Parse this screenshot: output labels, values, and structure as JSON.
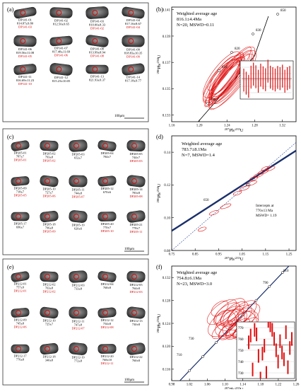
{
  "figure": {
    "rows": [
      {
        "images_label": "(a)",
        "plot_label": "(b)",
        "scale_bar": "100μm",
        "grains": [
          {
            "id": "DP141-01",
            "age": "814.87±9.80",
            "red": "DP141-03"
          },
          {
            "id": "DP141-02",
            "age": "812.50±9.65",
            "red": ""
          },
          {
            "id": "DP141-03",
            "age": "810.00±8.33",
            "red": "DP141-02"
          },
          {
            "id": "DP141-04",
            "age": "817.16±8.67",
            "red": "DP141-04"
          },
          {
            "id": "DP141-06",
            "age": "819.56±11.08",
            "red": "DP141-05"
          },
          {
            "id": "DP141-07",
            "age": "817.48±11.69",
            "red": "DP141-06"
          },
          {
            "id": "DP141-08",
            "age": "813.99±8.94",
            "red": "DP141-08"
          },
          {
            "id": "DP141-09",
            "age": "818.83±10.35",
            "red": "DP141-09"
          },
          {
            "id": "DP141-11",
            "age": "816.69±11.23",
            "red": "DP141-10"
          },
          {
            "id": "DP141-12",
            "age": "815.23±10.05",
            "red": ""
          },
          {
            "id": "DP141-13",
            "age": "821.93±9.37",
            "red": ""
          },
          {
            "id": "DP141-14",
            "age": "817.18±9.77",
            "red": ""
          }
        ],
        "plot": {
          "annotation": [
            "Weighted average age",
            "816.1±4.4Ma",
            "N=20, MSWD=0.11"
          ],
          "ylabel": "206Pb/238U",
          "xlabel": "207Pb/235U",
          "x_ticks": [
            "1.16",
            "1.20",
            "1.24",
            "1.28",
            "1.32"
          ],
          "y_ticks": [
            "0.133",
            "0.135",
            "0.137",
            "0.139",
            "0.141"
          ],
          "concordia_labels": [
            "850",
            "830",
            "820",
            "810",
            "790"
          ]
        }
      },
      {
        "images_label": "(c)",
        "plot_label": "(d)",
        "scale_bar": "100μm",
        "grains": [
          {
            "id": "DP205-01",
            "age": "787±7",
            "red": "DP205-01"
          },
          {
            "id": "DP205-02",
            "age": "793±8",
            "red": "DP205-02"
          },
          {
            "id": "DP205-03",
            "age": "652±7",
            "red": ""
          },
          {
            "id": "DP205-04",
            "age": "784±7",
            "red": ""
          },
          {
            "id": "DP205-05",
            "age": "744±7",
            "red": "DP205-03"
          },
          {
            "id": "DP205-09",
            "age": "718±7",
            "red": "DP205-05"
          },
          {
            "id": "DP205-10",
            "age": "727±7",
            "red": "DP205-06"
          },
          {
            "id": "DP205-11",
            "age": "744±8",
            "red": "DP205-07"
          },
          {
            "id": "DP205-12",
            "age": "670±6",
            "red": ""
          },
          {
            "id": "DP205-14",
            "age": "783±8",
            "red": "DP205-08"
          },
          {
            "id": "DP205-17",
            "age": "696±7",
            "red": ""
          },
          {
            "id": "DP205-18",
            "age": "796±8",
            "red": "DP205-09"
          },
          {
            "id": "DP205-19",
            "age": "620±6",
            "red": ""
          },
          {
            "id": "DP205-20",
            "age": "770±7",
            "red": "DP205-10"
          },
          {
            "id": "DP205-21",
            "age": "778±7",
            "red": "DP205-11"
          }
        ],
        "plot": {
          "annotation": [
            "Weighted average age",
            "783.7±8.1Ma",
            "N=7, MSWD=1.4"
          ],
          "intercepts": [
            "Intercepts at",
            "770±13 Ma",
            "MSWD= 1.19"
          ],
          "ylabel": "206Pb/238U",
          "xlabel": "207Pb/235U",
          "x_ticks": [
            "0.75",
            "0.85",
            "0.95",
            "1.05",
            "1.15",
            "1.25"
          ],
          "y_ticks": [
            "0.08",
            "0.10",
            "0.12",
            "0.14"
          ],
          "concordia_labels": [
            "650",
            "750"
          ]
        }
      },
      {
        "images_label": "(e)",
        "plot_label": "(f)",
        "scale_bar": "100μm",
        "grains": [
          {
            "id": "DP212-01",
            "age": "757±9",
            "red": "DP212-01"
          },
          {
            "id": "DP212-02",
            "age": "763±8",
            "red": "DP212-02"
          },
          {
            "id": "DP212-03",
            "age": "733±8",
            "red": ""
          },
          {
            "id": "DP212-04",
            "age": "768±8",
            "red": ""
          },
          {
            "id": "DP212-05",
            "age": "764±8",
            "red": "DP212-03"
          },
          {
            "id": "DP212-09",
            "age": "745±8",
            "red": "DP212-06"
          },
          {
            "id": "DP212-10",
            "age": "725±7",
            "red": ""
          },
          {
            "id": "DP212-11",
            "age": "747±8",
            "red": "DP212-07"
          },
          {
            "id": "DP212-12",
            "age": "754±8",
            "red": "DP212-08"
          },
          {
            "id": "DP212-13",
            "age": "730±8",
            "red": ""
          },
          {
            "id": "DP212-17",
            "age": "776±8",
            "red": ""
          },
          {
            "id": "DP212-18",
            "age": "340±8",
            "red": ""
          },
          {
            "id": "DP212-19",
            "age": "772±8",
            "red": ""
          },
          {
            "id": "DP212-20",
            "age": "768±10",
            "red": "DP212-11"
          },
          {
            "id": "DP212-22",
            "age": "760±8",
            "red": ""
          }
        ],
        "plot": {
          "annotation": [
            "Weighted average age",
            "754.8±6.1Ma",
            "N=23, MSWD=3.0"
          ],
          "ylabel": "206Pb/238U",
          "xlabel": "207Pb/235U",
          "x_ticks": [
            "0.98",
            "1.02",
            "1.06",
            "1.10",
            "1.14",
            "1.18",
            "1.22",
            "1.26"
          ],
          "y_ticks": [
            "0.116",
            "0.120",
            "0.124",
            "0.128",
            "0.132"
          ],
          "concordia_labels": [
            "810",
            "790",
            "730",
            "710"
          ],
          "inset_ticks": [
            "770",
            "760",
            "750",
            "740",
            "730"
          ]
        }
      }
    ]
  },
  "chart_data": [
    {
      "type": "scatter",
      "title": "",
      "xlabel": "207Pb/235U",
      "ylabel": "206Pb/238U",
      "xlim": [
        1.16,
        1.34
      ],
      "ylim": [
        0.1325,
        0.1412
      ],
      "concordia": [
        [
          1.16,
          0.1302
        ],
        [
          1.22,
          0.1338
        ],
        [
          1.28,
          0.1375
        ],
        [
          1.3,
          0.1405
        ]
      ],
      "ellipses_center": [
        1.24,
        0.1358
      ],
      "inset": {
        "type": "bar",
        "ylim": [
          800,
          830
        ],
        "mean": 816.1,
        "values": [
          814.9,
          812.5,
          810,
          817.2,
          819.6,
          817.5,
          814,
          818.8,
          816.7,
          815.2,
          821.9,
          817.2,
          816,
          815,
          817,
          816,
          818,
          814,
          816,
          817
        ]
      }
    },
    {
      "type": "scatter",
      "title": "",
      "xlabel": "207Pb/235U",
      "ylabel": "206Pb/238U",
      "xlim": [
        0.75,
        1.28
      ],
      "ylim": [
        0.08,
        0.15
      ],
      "points": [
        [
          0.88,
          0.093
        ],
        [
          0.93,
          0.103
        ],
        [
          0.98,
          0.107
        ],
        [
          1.03,
          0.115
        ],
        [
          1.06,
          0.118
        ],
        [
          1.09,
          0.121
        ],
        [
          1.1,
          0.124
        ],
        [
          1.12,
          0.126
        ],
        [
          1.14,
          0.128
        ],
        [
          1.15,
          0.13
        ],
        [
          1.17,
          0.13
        ]
      ],
      "intercept_age": 770
    },
    {
      "type": "scatter",
      "title": "",
      "xlabel": "207Pb/235U",
      "ylabel": "206Pb/238U",
      "xlim": [
        0.98,
        1.26
      ],
      "ylim": [
        0.114,
        0.134
      ],
      "ellipses_center": [
        1.12,
        0.1245
      ],
      "inset": {
        "type": "bar",
        "ylim": [
          725,
          775
        ],
        "mean": 754.8,
        "values": [
          757,
          763,
          733,
          768,
          764,
          745,
          725,
          747,
          754,
          730,
          776,
          772,
          768,
          760,
          750,
          740,
          758,
          748,
          742,
          766,
          735,
          752,
          760
        ]
      }
    }
  ]
}
